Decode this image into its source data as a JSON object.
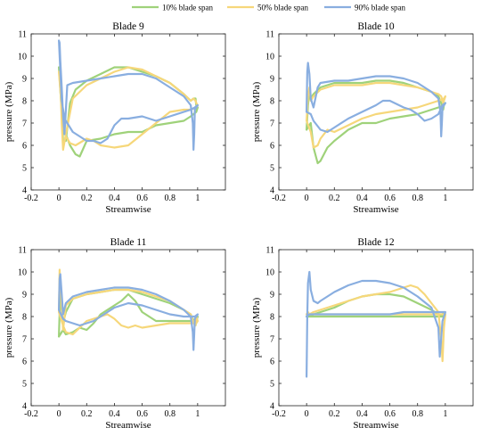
{
  "colors": {
    "series_10": "#9fd27a",
    "series_50": "#f6d77a",
    "series_90": "#89aee0"
  },
  "legend": {
    "placement": "top-center",
    "entries": [
      "10% blade span",
      "50% blade span",
      "90% blade span"
    ]
  },
  "chart_data": [
    {
      "type": "line",
      "title": "Blade 9",
      "xlabel": "Streamwise",
      "ylabel": "pressure (MPa)",
      "xlim": [
        -0.2,
        1.2
      ],
      "ylim": [
        4,
        11
      ],
      "xticks": [
        "-0.2",
        "0",
        "0.2",
        "0.4",
        "0.6",
        "0.8",
        "1"
      ],
      "yticks": [
        "4",
        "5",
        "6",
        "7",
        "8",
        "9",
        "10",
        "11"
      ],
      "series": [
        {
          "name": "10% blade span",
          "x": [
            0.0,
            0.01,
            0.02,
            0.03,
            0.05,
            0.08,
            0.12,
            0.2,
            0.3,
            0.4,
            0.5,
            0.6,
            0.7,
            0.8,
            0.9,
            0.95,
            0.97,
            0.985,
            0.99,
            1.0,
            0.99,
            0.95,
            0.9,
            0.8,
            0.7,
            0.6,
            0.5,
            0.4,
            0.3,
            0.2,
            0.15,
            0.12,
            0.08,
            0.05,
            0.03,
            0.02,
            0.0
          ],
          "y": [
            9.5,
            9.2,
            7.5,
            6.2,
            6.2,
            7.9,
            8.5,
            8.9,
            9.2,
            9.5,
            9.5,
            9.3,
            9.1,
            8.8,
            8.3,
            8.0,
            8.1,
            8.1,
            7.8,
            7.7,
            7.5,
            7.3,
            7.1,
            7.0,
            6.9,
            6.6,
            6.6,
            6.5,
            6.3,
            6.2,
            5.5,
            5.6,
            6.0,
            6.5,
            6.8,
            7.5,
            9.5
          ]
        },
        {
          "name": "50% blade span",
          "x": [
            0.0,
            0.01,
            0.02,
            0.03,
            0.05,
            0.1,
            0.2,
            0.3,
            0.4,
            0.5,
            0.6,
            0.7,
            0.8,
            0.9,
            0.95,
            0.97,
            0.985,
            0.99,
            1.0,
            0.99,
            0.95,
            0.9,
            0.8,
            0.7,
            0.6,
            0.5,
            0.4,
            0.3,
            0.25,
            0.2,
            0.12,
            0.08,
            0.05,
            0.03,
            0.0
          ],
          "y": [
            9.3,
            9.0,
            7.0,
            5.8,
            6.5,
            8.1,
            8.7,
            9.0,
            9.3,
            9.5,
            9.4,
            9.1,
            8.8,
            8.3,
            8.0,
            8.1,
            8.0,
            7.9,
            7.8,
            7.7,
            7.6,
            7.6,
            7.5,
            7.0,
            6.5,
            6.0,
            5.9,
            6.0,
            6.2,
            6.3,
            6.0,
            6.1,
            6.4,
            6.9,
            9.3
          ]
        },
        {
          "name": "90% blade span",
          "x": [
            0.0,
            0.005,
            0.01,
            0.02,
            0.03,
            0.04,
            0.06,
            0.1,
            0.2,
            0.3,
            0.4,
            0.5,
            0.6,
            0.7,
            0.8,
            0.9,
            0.95,
            0.965,
            0.97,
            0.975,
            0.98,
            1.0,
            0.98,
            0.95,
            0.9,
            0.8,
            0.7,
            0.6,
            0.5,
            0.45,
            0.4,
            0.35,
            0.3,
            0.25,
            0.2,
            0.15,
            0.1,
            0.06,
            0.04,
            0.02,
            0.0
          ],
          "y": [
            10.7,
            10.6,
            9.8,
            8.6,
            7.3,
            6.5,
            8.7,
            8.8,
            8.9,
            9.0,
            9.1,
            9.2,
            9.2,
            9.0,
            8.6,
            8.2,
            7.8,
            7.0,
            5.8,
            6.5,
            7.6,
            7.8,
            7.7,
            7.6,
            7.5,
            7.3,
            7.1,
            7.3,
            7.2,
            7.2,
            6.9,
            6.3,
            6.1,
            6.2,
            6.2,
            6.4,
            6.6,
            7.0,
            7.2,
            8.0,
            10.7
          ]
        }
      ]
    },
    {
      "type": "line",
      "title": "Blade 10",
      "xlabel": "Streamwise",
      "ylabel": "pressure (MPa)",
      "xlim": [
        -0.2,
        1.2
      ],
      "ylim": [
        4,
        11
      ],
      "xticks": [
        "-0.2",
        "0",
        "0.2",
        "0.4",
        "0.6",
        "0.8",
        "1"
      ],
      "yticks": [
        "4",
        "5",
        "6",
        "7",
        "8",
        "9",
        "10",
        "11"
      ],
      "series": [
        {
          "name": "10% blade span",
          "x": [
            0.0,
            0.01,
            0.02,
            0.03,
            0.05,
            0.1,
            0.2,
            0.3,
            0.4,
            0.5,
            0.6,
            0.7,
            0.8,
            0.9,
            0.95,
            0.97,
            0.985,
            0.99,
            1.0,
            0.99,
            0.95,
            0.9,
            0.8,
            0.7,
            0.6,
            0.5,
            0.4,
            0.3,
            0.2,
            0.15,
            0.1,
            0.08,
            0.05,
            0.03,
            0.0
          ],
          "y": [
            6.7,
            7.8,
            8.4,
            8.1,
            8.3,
            8.6,
            8.8,
            8.8,
            8.8,
            8.9,
            8.9,
            8.8,
            8.6,
            8.4,
            8.2,
            7.9,
            7.6,
            7.8,
            7.9,
            7.8,
            7.7,
            7.6,
            7.4,
            7.3,
            7.2,
            7.0,
            7.0,
            6.7,
            6.2,
            5.9,
            5.3,
            5.2,
            5.9,
            7.0,
            6.7
          ]
        },
        {
          "name": "50% blade span",
          "x": [
            0.0,
            0.01,
            0.02,
            0.03,
            0.05,
            0.1,
            0.2,
            0.3,
            0.4,
            0.5,
            0.6,
            0.7,
            0.8,
            0.9,
            0.95,
            0.97,
            0.985,
            0.99,
            1.0,
            0.99,
            0.95,
            0.9,
            0.8,
            0.7,
            0.6,
            0.5,
            0.4,
            0.3,
            0.2,
            0.15,
            0.1,
            0.08,
            0.05,
            0.03,
            0.0
          ],
          "y": [
            7.1,
            8.2,
            8.6,
            8.0,
            8.2,
            8.5,
            8.7,
            8.7,
            8.7,
            8.8,
            8.8,
            8.7,
            8.6,
            8.4,
            8.3,
            8.2,
            7.9,
            8.0,
            8.2,
            8.1,
            8.0,
            7.9,
            7.7,
            7.6,
            7.5,
            7.4,
            7.2,
            6.9,
            6.6,
            6.7,
            6.3,
            6.0,
            5.9,
            6.6,
            7.1
          ]
        },
        {
          "name": "90% blade span",
          "x": [
            0.0,
            0.005,
            0.01,
            0.02,
            0.03,
            0.05,
            0.08,
            0.1,
            0.2,
            0.3,
            0.4,
            0.5,
            0.6,
            0.7,
            0.8,
            0.9,
            0.95,
            0.965,
            0.97,
            0.975,
            0.98,
            1.0,
            0.98,
            0.95,
            0.9,
            0.85,
            0.8,
            0.75,
            0.7,
            0.6,
            0.55,
            0.5,
            0.4,
            0.3,
            0.2,
            0.15,
            0.1,
            0.05,
            0.03,
            0.0
          ],
          "y": [
            7.5,
            9.3,
            9.7,
            9.2,
            8.1,
            7.7,
            8.6,
            8.8,
            8.9,
            8.9,
            9.0,
            9.1,
            9.1,
            9.0,
            8.8,
            8.4,
            8.1,
            7.5,
            6.4,
            7.0,
            7.7,
            7.9,
            7.8,
            7.4,
            7.2,
            7.1,
            7.4,
            7.6,
            7.7,
            8.0,
            8.0,
            7.8,
            7.5,
            7.2,
            6.8,
            6.6,
            6.7,
            7.1,
            7.4,
            7.5
          ]
        }
      ]
    },
    {
      "type": "line",
      "title": "Blade 11",
      "xlabel": "Streamwise",
      "ylabel": "pressure (MPa)",
      "xlim": [
        -0.2,
        1.2
      ],
      "ylim": [
        4,
        11
      ],
      "xticks": [
        "-0.2",
        "0",
        "0.2",
        "0.4",
        "0.6",
        "0.8",
        "1"
      ],
      "yticks": [
        "4",
        "5",
        "6",
        "7",
        "8",
        "9",
        "10",
        "11"
      ],
      "series": [
        {
          "name": "10% blade span",
          "x": [
            0.0,
            0.01,
            0.02,
            0.03,
            0.05,
            0.1,
            0.2,
            0.3,
            0.4,
            0.5,
            0.6,
            0.7,
            0.8,
            0.9,
            0.95,
            0.97,
            0.985,
            0.99,
            1.0,
            0.99,
            0.95,
            0.9,
            0.8,
            0.7,
            0.6,
            0.55,
            0.5,
            0.45,
            0.4,
            0.35,
            0.3,
            0.25,
            0.2,
            0.15,
            0.1,
            0.05,
            0.03,
            0.0
          ],
          "y": [
            7.1,
            9.2,
            8.3,
            7.7,
            8.2,
            8.8,
            9.0,
            9.1,
            9.2,
            9.2,
            9.0,
            8.8,
            8.6,
            8.3,
            8.1,
            7.8,
            7.6,
            7.8,
            8.0,
            7.9,
            7.8,
            7.8,
            7.8,
            7.8,
            8.2,
            8.7,
            9.0,
            8.7,
            8.5,
            8.3,
            8.1,
            7.7,
            7.4,
            7.5,
            7.3,
            7.2,
            7.4,
            7.1
          ]
        },
        {
          "name": "50% blade span",
          "x": [
            0.0,
            0.005,
            0.01,
            0.02,
            0.03,
            0.05,
            0.1,
            0.2,
            0.3,
            0.4,
            0.5,
            0.6,
            0.7,
            0.8,
            0.9,
            0.95,
            0.97,
            0.985,
            0.99,
            1.0,
            0.99,
            0.95,
            0.9,
            0.8,
            0.7,
            0.6,
            0.55,
            0.5,
            0.45,
            0.4,
            0.35,
            0.3,
            0.2,
            0.15,
            0.1,
            0.05,
            0.03,
            0.0
          ],
          "y": [
            8.2,
            10.1,
            9.6,
            8.5,
            7.4,
            8.5,
            8.8,
            9.0,
            9.1,
            9.2,
            9.2,
            9.1,
            8.9,
            8.7,
            8.3,
            8.1,
            7.7,
            7.6,
            8.0,
            7.8,
            7.7,
            7.7,
            7.7,
            7.7,
            7.6,
            7.5,
            7.6,
            7.5,
            7.6,
            7.9,
            8.1,
            8.0,
            7.8,
            7.5,
            7.2,
            7.3,
            7.6,
            8.2
          ]
        },
        {
          "name": "90% blade span",
          "x": [
            0.0,
            0.005,
            0.01,
            0.02,
            0.03,
            0.05,
            0.1,
            0.2,
            0.3,
            0.4,
            0.5,
            0.6,
            0.7,
            0.8,
            0.9,
            0.95,
            0.965,
            0.97,
            0.975,
            0.98,
            1.0,
            0.98,
            0.95,
            0.9,
            0.8,
            0.7,
            0.6,
            0.5,
            0.4,
            0.35,
            0.3,
            0.25,
            0.2,
            0.15,
            0.1,
            0.05,
            0.03,
            0.0
          ],
          "y": [
            8.3,
            9.7,
            9.9,
            9.0,
            8.1,
            8.6,
            8.9,
            9.1,
            9.2,
            9.3,
            9.3,
            9.2,
            9.0,
            8.7,
            8.3,
            8.0,
            7.3,
            6.5,
            7.2,
            7.9,
            8.1,
            8.0,
            8.0,
            8.0,
            8.1,
            8.3,
            8.5,
            8.6,
            8.4,
            8.2,
            8.0,
            7.8,
            7.7,
            7.6,
            7.7,
            7.8,
            7.9,
            8.3
          ]
        }
      ]
    },
    {
      "type": "line",
      "title": "Blade 12",
      "xlabel": "Streamwise",
      "ylabel": "pressure (MPa)",
      "xlim": [
        -0.2,
        1.2
      ],
      "ylim": [
        4,
        11
      ],
      "xticks": [
        "-0.2",
        "0",
        "0.2",
        "0.4",
        "0.6",
        "0.8",
        "1"
      ],
      "yticks": [
        "4",
        "5",
        "6",
        "7",
        "8",
        "9",
        "10",
        "11"
      ],
      "series": [
        {
          "name": "10% blade span",
          "x": [
            0.0,
            0.01,
            0.02,
            0.05,
            0.1,
            0.2,
            0.3,
            0.4,
            0.5,
            0.6,
            0.7,
            0.8,
            0.9,
            0.95,
            0.97,
            0.99,
            1.0,
            0.99,
            0.95,
            0.9,
            0.8,
            0.7,
            0.6,
            0.5,
            0.4,
            0.3,
            0.2,
            0.1,
            0.05,
            0.02,
            0.0
          ],
          "y": [
            8.0,
            8.1,
            8.0,
            8.1,
            8.2,
            8.4,
            8.7,
            8.9,
            9.0,
            9.0,
            8.9,
            8.6,
            8.3,
            8.1,
            8.0,
            8.2,
            8.1,
            8.0,
            8.0,
            8.0,
            8.0,
            8.0,
            8.0,
            8.0,
            8.0,
            8.0,
            8.0,
            8.0,
            8.0,
            8.0,
            8.0
          ]
        },
        {
          "name": "50% blade span",
          "x": [
            0.0,
            0.01,
            0.02,
            0.05,
            0.1,
            0.2,
            0.3,
            0.4,
            0.5,
            0.6,
            0.7,
            0.75,
            0.8,
            0.85,
            0.9,
            0.95,
            0.97,
            0.98,
            0.99,
            1.0,
            0.99,
            0.95,
            0.9,
            0.8,
            0.7,
            0.6,
            0.5,
            0.4,
            0.3,
            0.2,
            0.1,
            0.05,
            0.02,
            0.0
          ],
          "y": [
            8.1,
            8.2,
            8.1,
            8.2,
            8.3,
            8.5,
            8.7,
            8.9,
            9.0,
            9.1,
            9.3,
            9.4,
            9.3,
            9.0,
            8.6,
            8.2,
            7.0,
            6.0,
            7.5,
            8.1,
            8.1,
            8.1,
            8.1,
            8.1,
            8.1,
            8.1,
            8.1,
            8.1,
            8.1,
            8.1,
            8.1,
            8.1,
            8.1,
            8.1
          ]
        },
        {
          "name": "90% blade span",
          "x": [
            0.0,
            0.005,
            0.01,
            0.02,
            0.03,
            0.05,
            0.08,
            0.1,
            0.2,
            0.3,
            0.4,
            0.5,
            0.6,
            0.7,
            0.8,
            0.9,
            0.95,
            0.96,
            0.97,
            0.98,
            1.0,
            0.98,
            0.95,
            0.9,
            0.8,
            0.7,
            0.6,
            0.5,
            0.4,
            0.3,
            0.2,
            0.1,
            0.05,
            0.02,
            0.0
          ],
          "y": [
            5.3,
            8.0,
            9.5,
            10.0,
            9.2,
            8.7,
            8.6,
            8.7,
            9.1,
            9.4,
            9.6,
            9.6,
            9.5,
            9.3,
            8.9,
            8.4,
            7.5,
            6.2,
            7.0,
            7.8,
            8.2,
            8.2,
            8.2,
            8.2,
            8.2,
            8.2,
            8.1,
            8.1,
            8.1,
            8.1,
            8.1,
            8.1,
            8.1,
            8.1,
            8.0
          ]
        }
      ]
    }
  ]
}
